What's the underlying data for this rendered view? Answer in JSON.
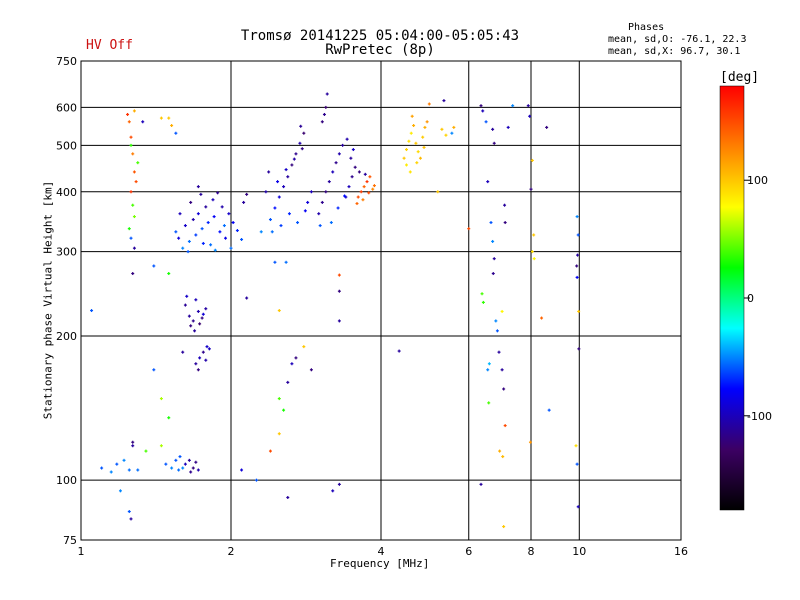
{
  "header": {
    "title_line1": "Tromsø 20141225 05:04:00-05:05:43",
    "title_line2": "RwPretec (8p)",
    "status": "HV Off",
    "phases_heading": "Phases",
    "phases_o": "mean, sd,O: -76.1, 22.3",
    "phases_x": "mean, sd,X:  96.7, 30.1"
  },
  "colors": {
    "status": "#cc1111",
    "grid": "#000000"
  },
  "colorbar": {
    "unit": "[deg]",
    "ticks": [
      100,
      0,
      -100
    ],
    "range": [
      -180,
      180
    ],
    "scale_colors": [
      "#000000",
      "#3c0064",
      "#0000ff",
      "#00ffff",
      "#00ff00",
      "#ffff00",
      "#ff8000",
      "#ff0000"
    ]
  },
  "chart_data": {
    "type": "scatter",
    "xlabel": "Frequency [MHz]",
    "ylabel": "Stationary phase Virtual Height [km]",
    "x_scale": "log",
    "y_scale": "log",
    "xlim": [
      1,
      16
    ],
    "ylim": [
      75,
      750
    ],
    "x_ticks": [
      1,
      2,
      4,
      6,
      8,
      10,
      16
    ],
    "y_ticks": [
      75,
      100,
      200,
      300,
      400,
      500,
      600,
      750
    ],
    "grid": true,
    "points": [
      {
        "x": 1.65,
        "y": 220,
        "p": -110
      },
      {
        "x": 1.68,
        "y": 215,
        "p": -115
      },
      {
        "x": 1.72,
        "y": 225,
        "p": -105
      },
      {
        "x": 1.62,
        "y": 232,
        "p": -112
      },
      {
        "x": 1.75,
        "y": 218,
        "p": -118
      },
      {
        "x": 1.78,
        "y": 228,
        "p": -108
      },
      {
        "x": 1.66,
        "y": 210,
        "p": -120
      },
      {
        "x": 1.7,
        "y": 238,
        "p": -100
      },
      {
        "x": 1.73,
        "y": 212,
        "p": -125
      },
      {
        "x": 1.69,
        "y": 205,
        "p": -110
      },
      {
        "x": 1.63,
        "y": 242,
        "p": -95
      },
      {
        "x": 1.76,
        "y": 222,
        "p": -90
      },
      {
        "x": 1.7,
        "y": 175,
        "p": -110
      },
      {
        "x": 1.73,
        "y": 180,
        "p": -100
      },
      {
        "x": 1.76,
        "y": 185,
        "p": -115
      },
      {
        "x": 1.79,
        "y": 190,
        "p": -95
      },
      {
        "x": 1.72,
        "y": 170,
        "p": -120
      },
      {
        "x": 1.78,
        "y": 178,
        "p": -105
      },
      {
        "x": 1.81,
        "y": 188,
        "p": -98
      },
      {
        "x": 1.6,
        "y": 305,
        "p": -50
      },
      {
        "x": 1.65,
        "y": 315,
        "p": -55
      },
      {
        "x": 1.7,
        "y": 325,
        "p": -65
      },
      {
        "x": 1.75,
        "y": 335,
        "p": -60
      },
      {
        "x": 1.8,
        "y": 345,
        "p": -70
      },
      {
        "x": 1.85,
        "y": 355,
        "p": -80
      },
      {
        "x": 1.9,
        "y": 330,
        "p": -75
      },
      {
        "x": 1.95,
        "y": 320,
        "p": -85
      },
      {
        "x": 1.62,
        "y": 340,
        "p": -95
      },
      {
        "x": 1.68,
        "y": 350,
        "p": -105
      },
      {
        "x": 1.72,
        "y": 360,
        "p": -90
      },
      {
        "x": 1.78,
        "y": 372,
        "p": -110
      },
      {
        "x": 1.84,
        "y": 385,
        "p": -100
      },
      {
        "x": 1.88,
        "y": 398,
        "p": -115
      },
      {
        "x": 1.55,
        "y": 330,
        "p": -60
      },
      {
        "x": 1.58,
        "y": 360,
        "p": -100
      },
      {
        "x": 1.66,
        "y": 380,
        "p": -120
      },
      {
        "x": 1.74,
        "y": 395,
        "p": -110
      },
      {
        "x": 1.92,
        "y": 372,
        "p": -105
      },
      {
        "x": 1.98,
        "y": 360,
        "p": -95
      },
      {
        "x": 2.02,
        "y": 345,
        "p": -80
      },
      {
        "x": 2.06,
        "y": 332,
        "p": -70
      },
      {
        "x": 2.1,
        "y": 318,
        "p": -60
      },
      {
        "x": 1.82,
        "y": 310,
        "p": -55
      },
      {
        "x": 1.86,
        "y": 302,
        "p": -50
      },
      {
        "x": 2.0,
        "y": 305,
        "p": -55
      },
      {
        "x": 2.12,
        "y": 380,
        "p": -110
      },
      {
        "x": 2.15,
        "y": 395,
        "p": -120
      },
      {
        "x": 1.57,
        "y": 320,
        "p": -90
      },
      {
        "x": 1.64,
        "y": 300,
        "p": -60
      },
      {
        "x": 1.76,
        "y": 312,
        "p": -70
      },
      {
        "x": 1.94,
        "y": 340,
        "p": -55
      },
      {
        "x": 2.4,
        "y": 350,
        "p": -60
      },
      {
        "x": 2.45,
        "y": 370,
        "p": -75
      },
      {
        "x": 2.5,
        "y": 390,
        "p": -90
      },
      {
        "x": 2.55,
        "y": 410,
        "p": -100
      },
      {
        "x": 2.6,
        "y": 430,
        "p": -110
      },
      {
        "x": 2.65,
        "y": 455,
        "p": -120
      },
      {
        "x": 2.7,
        "y": 480,
        "p": -115
      },
      {
        "x": 2.75,
        "y": 505,
        "p": -105
      },
      {
        "x": 2.8,
        "y": 530,
        "p": -125
      },
      {
        "x": 2.42,
        "y": 330,
        "p": -55
      },
      {
        "x": 2.52,
        "y": 340,
        "p": -65
      },
      {
        "x": 2.62,
        "y": 360,
        "p": -70
      },
      {
        "x": 2.72,
        "y": 345,
        "p": -60
      },
      {
        "x": 2.85,
        "y": 380,
        "p": -90
      },
      {
        "x": 2.9,
        "y": 400,
        "p": -100
      },
      {
        "x": 2.48,
        "y": 420,
        "p": -85
      },
      {
        "x": 2.58,
        "y": 445,
        "p": -95
      },
      {
        "x": 2.68,
        "y": 468,
        "p": -108
      },
      {
        "x": 2.78,
        "y": 492,
        "p": -118
      },
      {
        "x": 2.35,
        "y": 400,
        "p": -105
      },
      {
        "x": 2.3,
        "y": 330,
        "p": -50
      },
      {
        "x": 2.38,
        "y": 440,
        "p": -110
      },
      {
        "x": 2.76,
        "y": 548,
        "p": -112
      },
      {
        "x": 2.82,
        "y": 365,
        "p": -80
      },
      {
        "x": 3.0,
        "y": 360,
        "p": -105
      },
      {
        "x": 3.05,
        "y": 380,
        "p": -115
      },
      {
        "x": 3.1,
        "y": 400,
        "p": -120
      },
      {
        "x": 3.15,
        "y": 420,
        "p": -110
      },
      {
        "x": 3.2,
        "y": 440,
        "p": -100
      },
      {
        "x": 3.25,
        "y": 460,
        "p": -115
      },
      {
        "x": 3.3,
        "y": 480,
        "p": -105
      },
      {
        "x": 3.35,
        "y": 500,
        "p": -110
      },
      {
        "x": 3.05,
        "y": 560,
        "p": -120
      },
      {
        "x": 3.08,
        "y": 580,
        "p": -115
      },
      {
        "x": 3.1,
        "y": 600,
        "p": -125
      },
      {
        "x": 3.12,
        "y": 640,
        "p": -110
      },
      {
        "x": 3.4,
        "y": 390,
        "p": -95
      },
      {
        "x": 3.45,
        "y": 410,
        "p": -100
      },
      {
        "x": 3.5,
        "y": 430,
        "p": -115
      },
      {
        "x": 3.55,
        "y": 450,
        "p": -120
      },
      {
        "x": 3.48,
        "y": 470,
        "p": -110
      },
      {
        "x": 3.52,
        "y": 490,
        "p": -95
      },
      {
        "x": 3.42,
        "y": 515,
        "p": -105
      },
      {
        "x": 3.02,
        "y": 340,
        "p": -60
      },
      {
        "x": 3.18,
        "y": 345,
        "p": -55
      },
      {
        "x": 3.28,
        "y": 370,
        "p": -70
      },
      {
        "x": 3.38,
        "y": 392,
        "p": -75
      },
      {
        "x": 3.6,
        "y": 390,
        "p": 150
      },
      {
        "x": 3.65,
        "y": 400,
        "p": 155
      },
      {
        "x": 3.7,
        "y": 410,
        "p": 140
      },
      {
        "x": 3.75,
        "y": 420,
        "p": 160
      },
      {
        "x": 3.8,
        "y": 430,
        "p": 145
      },
      {
        "x": 3.68,
        "y": 385,
        "p": 130
      },
      {
        "x": 3.78,
        "y": 398,
        "p": 150
      },
      {
        "x": 3.88,
        "y": 412,
        "p": 135
      },
      {
        "x": 3.58,
        "y": 378,
        "p": 140
      },
      {
        "x": 3.72,
        "y": 435,
        "p": -110
      },
      {
        "x": 3.62,
        "y": 440,
        "p": -120
      },
      {
        "x": 3.85,
        "y": 405,
        "p": 125
      },
      {
        "x": 4.45,
        "y": 470,
        "p": 100
      },
      {
        "x": 4.5,
        "y": 490,
        "p": 95
      },
      {
        "x": 4.55,
        "y": 510,
        "p": 90
      },
      {
        "x": 4.6,
        "y": 530,
        "p": 85
      },
      {
        "x": 4.65,
        "y": 550,
        "p": 110
      },
      {
        "x": 4.7,
        "y": 505,
        "p": 100
      },
      {
        "x": 4.75,
        "y": 485,
        "p": 92
      },
      {
        "x": 4.8,
        "y": 470,
        "p": 105
      },
      {
        "x": 4.85,
        "y": 520,
        "p": 98
      },
      {
        "x": 4.9,
        "y": 545,
        "p": 110
      },
      {
        "x": 4.95,
        "y": 560,
        "p": 120
      },
      {
        "x": 4.5,
        "y": 455,
        "p": 85
      },
      {
        "x": 4.58,
        "y": 440,
        "p": 88
      },
      {
        "x": 4.72,
        "y": 460,
        "p": 95
      },
      {
        "x": 4.88,
        "y": 495,
        "p": 102
      },
      {
        "x": 4.62,
        "y": 575,
        "p": 115
      },
      {
        "x": 5.0,
        "y": 610,
        "p": 130
      },
      {
        "x": 5.3,
        "y": 540,
        "p": 100
      },
      {
        "x": 5.4,
        "y": 525,
        "p": 95
      },
      {
        "x": 5.6,
        "y": 545,
        "p": 110
      },
      {
        "x": 5.35,
        "y": 620,
        "p": -110
      },
      {
        "x": 5.55,
        "y": 530,
        "p": -50
      },
      {
        "x": 5.2,
        "y": 400,
        "p": 100
      },
      {
        "x": 6.0,
        "y": 335,
        "p": 150
      },
      {
        "x": 6.35,
        "y": 605,
        "p": -120
      },
      {
        "x": 6.4,
        "y": 590,
        "p": -100
      },
      {
        "x": 6.5,
        "y": 560,
        "p": -60
      },
      {
        "x": 6.7,
        "y": 540,
        "p": -110
      },
      {
        "x": 6.75,
        "y": 505,
        "p": -120
      },
      {
        "x": 6.55,
        "y": 420,
        "p": -100
      },
      {
        "x": 6.65,
        "y": 345,
        "p": -60
      },
      {
        "x": 6.7,
        "y": 315,
        "p": -50
      },
      {
        "x": 6.75,
        "y": 290,
        "p": -110
      },
      {
        "x": 6.72,
        "y": 270,
        "p": -115
      },
      {
        "x": 6.38,
        "y": 245,
        "p": 40
      },
      {
        "x": 6.42,
        "y": 235,
        "p": 35
      },
      {
        "x": 6.8,
        "y": 215,
        "p": -50
      },
      {
        "x": 6.85,
        "y": 205,
        "p": -60
      },
      {
        "x": 6.6,
        "y": 175,
        "p": -40
      },
      {
        "x": 6.55,
        "y": 170,
        "p": -50
      },
      {
        "x": 6.58,
        "y": 145,
        "p": 40
      },
      {
        "x": 6.9,
        "y": 185,
        "p": -110
      },
      {
        "x": 7.0,
        "y": 170,
        "p": -110
      },
      {
        "x": 7.05,
        "y": 155,
        "p": -120
      },
      {
        "x": 7.1,
        "y": 130,
        "p": 150
      },
      {
        "x": 6.92,
        "y": 115,
        "p": 110
      },
      {
        "x": 7.02,
        "y": 112,
        "p": 105
      },
      {
        "x": 6.35,
        "y": 98,
        "p": -110
      },
      {
        "x": 7.05,
        "y": 80,
        "p": 100
      },
      {
        "x": 7.0,
        "y": 225,
        "p": 80
      },
      {
        "x": 7.08,
        "y": 375,
        "p": -110
      },
      {
        "x": 7.1,
        "y": 345,
        "p": -120
      },
      {
        "x": 7.2,
        "y": 545,
        "p": -100
      },
      {
        "x": 7.35,
        "y": 605,
        "p": -50
      },
      {
        "x": 7.9,
        "y": 605,
        "p": -110
      },
      {
        "x": 7.95,
        "y": 575,
        "p": -100
      },
      {
        "x": 8.05,
        "y": 465,
        "p": 100
      },
      {
        "x": 8.0,
        "y": 405,
        "p": -120
      },
      {
        "x": 8.1,
        "y": 325,
        "p": 100
      },
      {
        "x": 8.05,
        "y": 300,
        "p": 90
      },
      {
        "x": 8.12,
        "y": 290,
        "p": 80
      },
      {
        "x": 7.98,
        "y": 120,
        "p": 120
      },
      {
        "x": 8.6,
        "y": 545,
        "p": -120
      },
      {
        "x": 8.4,
        "y": 218,
        "p": 140
      },
      {
        "x": 8.7,
        "y": 140,
        "p": -60
      },
      {
        "x": 9.9,
        "y": 355,
        "p": -50
      },
      {
        "x": 9.95,
        "y": 325,
        "p": -60
      },
      {
        "x": 9.92,
        "y": 295,
        "p": -110
      },
      {
        "x": 9.88,
        "y": 280,
        "p": -120
      },
      {
        "x": 9.9,
        "y": 265,
        "p": -80
      },
      {
        "x": 9.97,
        "y": 225,
        "p": 100
      },
      {
        "x": 9.98,
        "y": 188,
        "p": -120
      },
      {
        "x": 9.85,
        "y": 118,
        "p": 90
      },
      {
        "x": 9.9,
        "y": 108,
        "p": -60
      },
      {
        "x": 9.95,
        "y": 88,
        "p": -100
      },
      {
        "x": 1.25,
        "y": 560,
        "p": 140
      },
      {
        "x": 1.26,
        "y": 520,
        "p": 150
      },
      {
        "x": 1.27,
        "y": 480,
        "p": 130
      },
      {
        "x": 1.28,
        "y": 440,
        "p": 145
      },
      {
        "x": 1.26,
        "y": 400,
        "p": 160
      },
      {
        "x": 1.27,
        "y": 375,
        "p": 40
      },
      {
        "x": 1.28,
        "y": 355,
        "p": 50
      },
      {
        "x": 1.25,
        "y": 335,
        "p": 30
      },
      {
        "x": 1.26,
        "y": 320,
        "p": -60
      },
      {
        "x": 1.28,
        "y": 305,
        "p": -110
      },
      {
        "x": 1.27,
        "y": 270,
        "p": -120
      },
      {
        "x": 1.28,
        "y": 590,
        "p": 110
      },
      {
        "x": 1.24,
        "y": 580,
        "p": 160
      },
      {
        "x": 1.29,
        "y": 420,
        "p": 150
      },
      {
        "x": 1.3,
        "y": 460,
        "p": 40
      },
      {
        "x": 1.26,
        "y": 500,
        "p": 35
      },
      {
        "x": 1.33,
        "y": 560,
        "p": -100
      },
      {
        "x": 1.5,
        "y": 570,
        "p": 100
      },
      {
        "x": 1.52,
        "y": 550,
        "p": 110
      },
      {
        "x": 1.45,
        "y": 570,
        "p": 100
      },
      {
        "x": 1.4,
        "y": 280,
        "p": -60
      },
      {
        "x": 1.5,
        "y": 270,
        "p": 30
      },
      {
        "x": 1.55,
        "y": 530,
        "p": -60
      },
      {
        "x": 1.72,
        "y": 410,
        "p": -110
      },
      {
        "x": 1.18,
        "y": 108,
        "p": -60
      },
      {
        "x": 1.22,
        "y": 110,
        "p": -50
      },
      {
        "x": 1.25,
        "y": 105,
        "p": -55
      },
      {
        "x": 1.1,
        "y": 106,
        "p": -60
      },
      {
        "x": 1.15,
        "y": 104,
        "p": -50
      },
      {
        "x": 1.27,
        "y": 118,
        "p": -110
      },
      {
        "x": 1.27,
        "y": 120,
        "p": -120
      },
      {
        "x": 1.35,
        "y": 115,
        "p": 40
      },
      {
        "x": 1.45,
        "y": 118,
        "p": 60
      },
      {
        "x": 1.48,
        "y": 108,
        "p": -60
      },
      {
        "x": 1.52,
        "y": 106,
        "p": -50
      },
      {
        "x": 1.57,
        "y": 105,
        "p": -55
      },
      {
        "x": 1.62,
        "y": 108,
        "p": -100
      },
      {
        "x": 1.65,
        "y": 110,
        "p": -110
      },
      {
        "x": 1.68,
        "y": 106,
        "p": -120
      },
      {
        "x": 1.72,
        "y": 105,
        "p": -105
      },
      {
        "x": 1.58,
        "y": 112,
        "p": -60
      },
      {
        "x": 1.6,
        "y": 106,
        "p": -50
      },
      {
        "x": 1.66,
        "y": 104,
        "p": -115
      },
      {
        "x": 1.7,
        "y": 109,
        "p": -118
      },
      {
        "x": 1.55,
        "y": 110,
        "p": -60
      },
      {
        "x": 1.5,
        "y": 135,
        "p": 30
      },
      {
        "x": 1.45,
        "y": 148,
        "p": 60
      },
      {
        "x": 1.4,
        "y": 170,
        "p": -60
      },
      {
        "x": 1.6,
        "y": 185,
        "p": -110
      },
      {
        "x": 1.25,
        "y": 86,
        "p": -60
      },
      {
        "x": 1.26,
        "y": 83,
        "p": -110
      },
      {
        "x": 1.05,
        "y": 226,
        "p": -60
      },
      {
        "x": 1.2,
        "y": 95,
        "p": -50
      },
      {
        "x": 1.3,
        "y": 105,
        "p": -55
      },
      {
        "x": 2.1,
        "y": 105,
        "p": -90
      },
      {
        "x": 2.25,
        "y": 100,
        "p": -60
      },
      {
        "x": 2.4,
        "y": 115,
        "p": 150
      },
      {
        "x": 2.5,
        "y": 125,
        "p": 100
      },
      {
        "x": 2.6,
        "y": 160,
        "p": -110
      },
      {
        "x": 2.65,
        "y": 175,
        "p": -100
      },
      {
        "x": 2.8,
        "y": 190,
        "p": 100
      },
      {
        "x": 2.7,
        "y": 180,
        "p": -120
      },
      {
        "x": 2.5,
        "y": 148,
        "p": 40
      },
      {
        "x": 2.55,
        "y": 140,
        "p": 30
      },
      {
        "x": 2.15,
        "y": 240,
        "p": -110
      },
      {
        "x": 2.5,
        "y": 226,
        "p": 100
      },
      {
        "x": 2.6,
        "y": 92,
        "p": -110
      },
      {
        "x": 2.45,
        "y": 285,
        "p": -60
      },
      {
        "x": 3.3,
        "y": 268,
        "p": 150
      },
      {
        "x": 3.3,
        "y": 248,
        "p": -120
      },
      {
        "x": 3.3,
        "y": 215,
        "p": -110
      },
      {
        "x": 3.3,
        "y": 98,
        "p": -110
      },
      {
        "x": 3.2,
        "y": 95,
        "p": -100
      },
      {
        "x": 2.9,
        "y": 170,
        "p": -120
      },
      {
        "x": 2.58,
        "y": 285,
        "p": -55
      },
      {
        "x": 4.35,
        "y": 186,
        "p": -110
      }
    ]
  }
}
